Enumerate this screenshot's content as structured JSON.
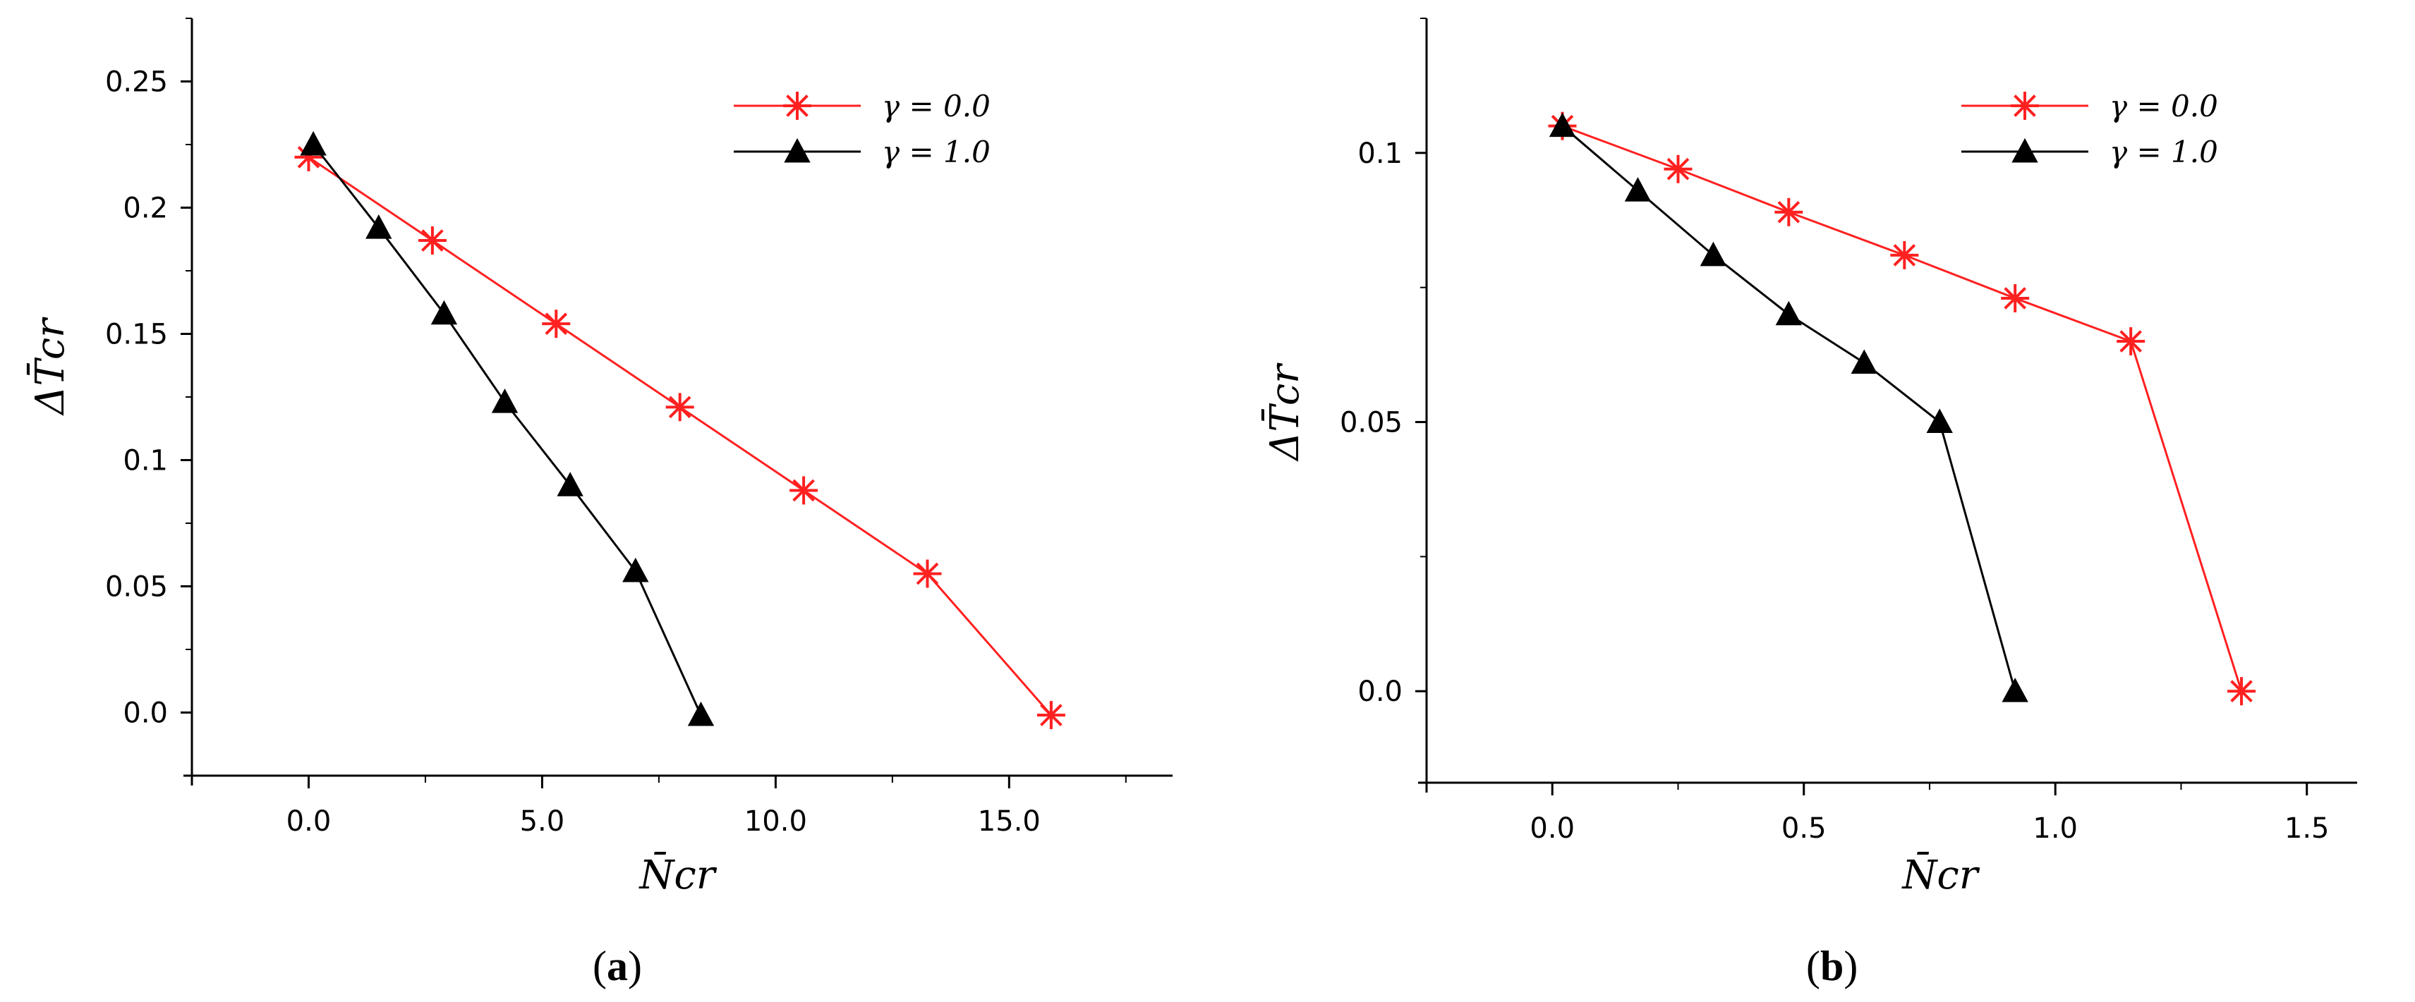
{
  "chart_data": [
    {
      "type": "line",
      "panel_label": "(a)",
      "panel_label_parts": [
        "(",
        "a",
        ")"
      ],
      "xlabel": "N̄cr",
      "ylabel": "ΔT̄cr",
      "xlim": [
        -2.5,
        18.5
      ],
      "ylim": [
        -0.025,
        0.275
      ],
      "x_ticks": [
        0.0,
        5.0,
        10.0,
        15.0
      ],
      "x_tick_labels": [
        "0.0",
        "5.0",
        "10.0",
        "15.0"
      ],
      "y_ticks": [
        0.0,
        0.05,
        0.1,
        0.15,
        0.2,
        0.25
      ],
      "y_tick_labels": [
        "0.0",
        "0.05",
        "0.1",
        "0.15",
        "0.2",
        "0.25"
      ],
      "grid": false,
      "legend_position": "top-right",
      "series": [
        {
          "name": "γ = 0.0",
          "marker": "asterisk",
          "color": "#ff2020",
          "x": [
            0.0,
            2.65,
            5.3,
            7.95,
            10.6,
            13.25,
            15.9
          ],
          "y": [
            0.22,
            0.187,
            0.154,
            0.121,
            0.088,
            0.055,
            -0.001
          ]
        },
        {
          "name": "γ = 1.0",
          "marker": "triangle",
          "color": "#000000",
          "x": [
            0.1,
            1.5,
            2.9,
            4.2,
            5.6,
            7.0,
            8.4
          ],
          "y": [
            0.225,
            0.192,
            0.158,
            0.123,
            0.09,
            0.056,
            -0.001
          ]
        }
      ]
    },
    {
      "type": "line",
      "panel_label": "(b)",
      "panel_label_parts": [
        "(",
        "b",
        ")"
      ],
      "xlabel": "N̄cr",
      "ylabel": "ΔT̄cr",
      "xlim": [
        -0.25,
        1.6
      ],
      "ylim": [
        -0.017,
        0.125
      ],
      "x_ticks": [
        0.0,
        0.5,
        1.0,
        1.5
      ],
      "x_tick_labels": [
        "0.0",
        "0.5",
        "1.0",
        "1.5"
      ],
      "y_ticks": [
        0.0,
        0.05,
        0.1
      ],
      "y_tick_labels": [
        "0.0",
        "0.05",
        "0.1"
      ],
      "grid": false,
      "legend_position": "top-right",
      "series": [
        {
          "name": "γ = 0.0",
          "marker": "asterisk",
          "color": "#ff2020",
          "x": [
            0.02,
            0.25,
            0.47,
            0.7,
            0.92,
            1.15,
            1.37
          ],
          "y": [
            0.105,
            0.097,
            0.089,
            0.081,
            0.073,
            0.065,
            0.0
          ]
        },
        {
          "name": "γ = 1.0",
          "marker": "triangle",
          "color": "#000000",
          "x": [
            0.02,
            0.17,
            0.32,
            0.47,
            0.62,
            0.77,
            0.92
          ],
          "y": [
            0.105,
            0.093,
            0.081,
            0.07,
            0.061,
            0.05,
            0.0
          ]
        }
      ]
    }
  ]
}
